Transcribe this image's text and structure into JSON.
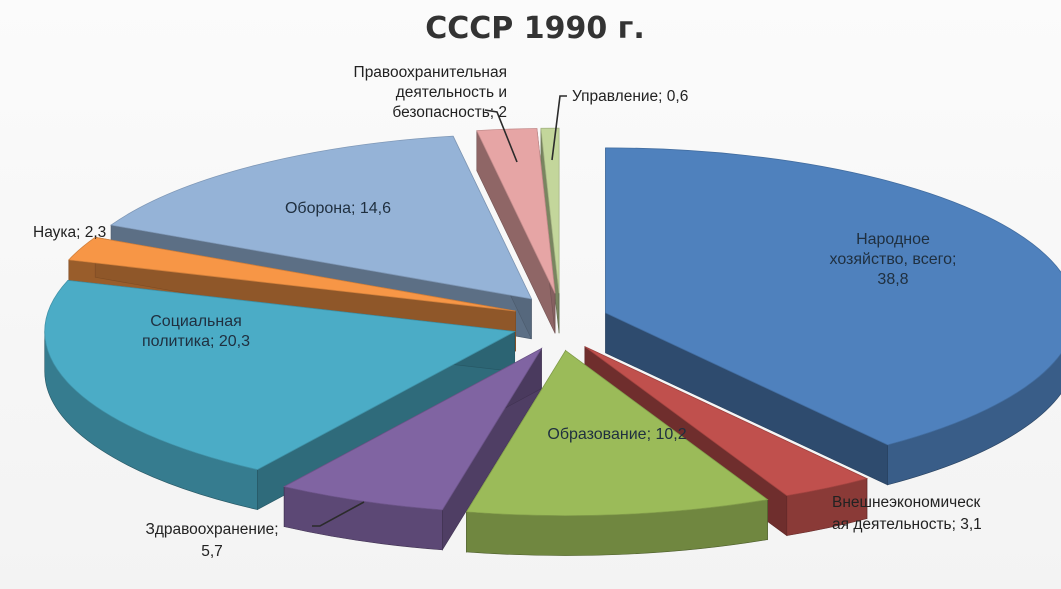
{
  "chart_data": {
    "type": "pie",
    "title": "СССР 1990 г.",
    "categories": [
      "Народное хозяйство, всего",
      "Внешнеэкономическая деятельность",
      "Образование",
      "Здравоохранение",
      "Социальная политика",
      "Наука",
      "Оборона",
      "Правоохранительная деятельность и безопасность",
      "Управление"
    ],
    "values": [
      38.8,
      3.1,
      10.2,
      5.7,
      20.3,
      2.3,
      14.6,
      2.0,
      0.6
    ],
    "data_labels": [
      [
        "Народное",
        "хозяйство, всего;",
        "38,8"
      ],
      [
        "Внешнеэкономическ",
        "ая деятельность; 3,1"
      ],
      [
        "Образование; 10,2"
      ],
      [
        "Здравоохранение;",
        "5,7"
      ],
      [
        "Социальная",
        "политика; 20,3"
      ],
      [
        "Наука; 2,3"
      ],
      [
        "Оборона; 14,6"
      ],
      [
        "Правоохранительная",
        "деятельность и",
        "безопасность; 2"
      ],
      [
        "Управление; 0,6"
      ]
    ],
    "colors": [
      "#4f81bd",
      "#c0504d",
      "#9bbb59",
      "#8064a2",
      "#4bacc6",
      "#f79646",
      "#95b3d7",
      "#e6a5a5",
      "#c3d69b"
    ],
    "exploded": true,
    "three_d": true,
    "legend": "none"
  }
}
